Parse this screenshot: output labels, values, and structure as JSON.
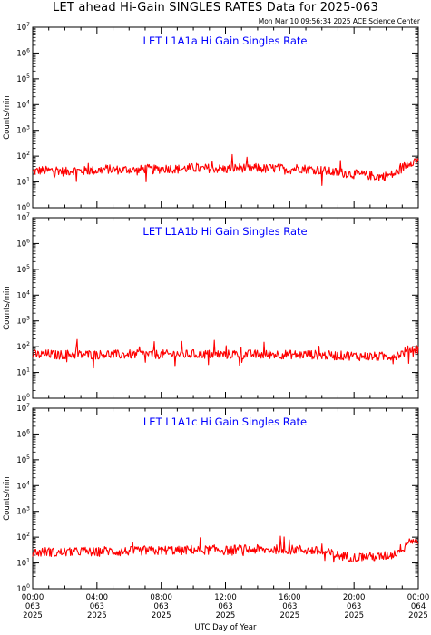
{
  "header": {
    "title": "LET ahead Hi-Gain SINGLES RATES Data for 2025-063",
    "timestamp": "Mon Mar 10 09:56:34 2025 ACE Science Center"
  },
  "colors": {
    "trace": "#ff0000",
    "panel_title": "#0000ff",
    "axis": "#000000"
  },
  "chart_data": [
    {
      "type": "line",
      "title": "LET L1A1a Hi Gain Singles Rate",
      "ylabel": "Counts/min",
      "ylog": true,
      "ylim": [
        1,
        10000000
      ],
      "xlim": [
        0,
        24
      ],
      "series": [
        {
          "x": [
            0,
            0.5,
            1,
            1.5,
            2,
            2.5,
            3,
            3.5,
            4,
            4.5,
            5,
            5.5,
            6,
            6.5,
            7,
            7.5,
            8,
            8.5,
            9,
            9.5,
            10,
            10.5,
            11,
            11.5,
            12,
            12.5,
            13,
            13.5,
            14,
            14.5,
            15,
            15.5,
            16,
            16.5,
            17,
            17.5,
            18,
            18.5,
            19,
            19.5,
            20,
            20.5,
            21,
            21.5,
            22,
            22.5,
            23,
            23.5,
            24
          ],
          "y": [
            25,
            28,
            27,
            30,
            24,
            29,
            26,
            28,
            27,
            32,
            30,
            29,
            31,
            27,
            33,
            30,
            32,
            34,
            31,
            33,
            35,
            32,
            34,
            33,
            31,
            34,
            36,
            33,
            35,
            32,
            34,
            33,
            30,
            35,
            32,
            31,
            28,
            25,
            23,
            22,
            20,
            19,
            18,
            16,
            17,
            20,
            35,
            60,
            70
          ]
        }
      ]
    },
    {
      "type": "line",
      "title": "LET L1A1b Hi Gain Singles Rate",
      "ylabel": "Counts/min",
      "ylog": true,
      "ylim": [
        1,
        10000000
      ],
      "xlim": [
        0,
        24
      ],
      "series": [
        {
          "x": [
            0,
            0.5,
            1,
            1.5,
            2,
            2.5,
            3,
            3.5,
            4,
            4.5,
            5,
            5.5,
            6,
            6.5,
            7,
            7.5,
            8,
            8.5,
            9,
            9.5,
            10,
            10.5,
            11,
            11.5,
            12,
            12.5,
            13,
            13.5,
            14,
            14.5,
            15,
            15.5,
            16,
            16.5,
            17,
            17.5,
            18,
            18.5,
            19,
            19.5,
            20,
            20.5,
            21,
            21.5,
            22,
            22.5,
            23,
            23.5,
            24
          ],
          "y": [
            50,
            48,
            52,
            47,
            50,
            51,
            49,
            50,
            48,
            52,
            50,
            49,
            51,
            50,
            52,
            49,
            51,
            50,
            53,
            50,
            51,
            52,
            50,
            51,
            49,
            52,
            50,
            51,
            50,
            49,
            52,
            50,
            51,
            48,
            50,
            49,
            47,
            46,
            45,
            46,
            44,
            43,
            42,
            41,
            43,
            45,
            55,
            80,
            85
          ]
        }
      ]
    },
    {
      "type": "line",
      "title": "LET L1A1c Hi Gain Singles Rate",
      "ylabel": "Counts/min",
      "ylog": true,
      "ylim": [
        1,
        10000000
      ],
      "xlim": [
        0,
        24
      ],
      "series": [
        {
          "x": [
            0,
            0.5,
            1,
            1.5,
            2,
            2.5,
            3,
            3.5,
            4,
            4.5,
            5,
            5.5,
            6,
            6.5,
            7,
            7.5,
            8,
            8.5,
            9,
            9.5,
            10,
            10.5,
            11,
            11.5,
            12,
            12.5,
            13,
            13.5,
            14,
            14.5,
            15,
            15.5,
            16,
            16.5,
            17,
            17.5,
            18,
            18.5,
            19,
            19.5,
            20,
            20.5,
            21,
            21.5,
            22,
            22.5,
            23,
            23.5,
            24
          ],
          "y": [
            25,
            26,
            28,
            24,
            27,
            25,
            29,
            27,
            26,
            30,
            28,
            27,
            29,
            28,
            31,
            29,
            30,
            32,
            30,
            31,
            33,
            31,
            32,
            34,
            30,
            33,
            35,
            32,
            34,
            31,
            33,
            35,
            32,
            34,
            31,
            30,
            27,
            24,
            20,
            18,
            16,
            17,
            18,
            17,
            19,
            22,
            40,
            80,
            60
          ]
        }
      ]
    }
  ],
  "xaxis": {
    "label": "UTC Day of Year",
    "ticks": [
      {
        "x": 0,
        "time": "00:00",
        "doy": "063",
        "year": "2025"
      },
      {
        "x": 4,
        "time": "04:00",
        "doy": "063",
        "year": "2025"
      },
      {
        "x": 8,
        "time": "08:00",
        "doy": "063",
        "year": "2025"
      },
      {
        "x": 12,
        "time": "12:00",
        "doy": "063",
        "year": "2025"
      },
      {
        "x": 16,
        "time": "16:00",
        "doy": "063",
        "year": "2025"
      },
      {
        "x": 20,
        "time": "20:00",
        "doy": "063",
        "year": "2025"
      },
      {
        "x": 24,
        "time": "00:00",
        "doy": "064",
        "year": "2025"
      }
    ]
  }
}
